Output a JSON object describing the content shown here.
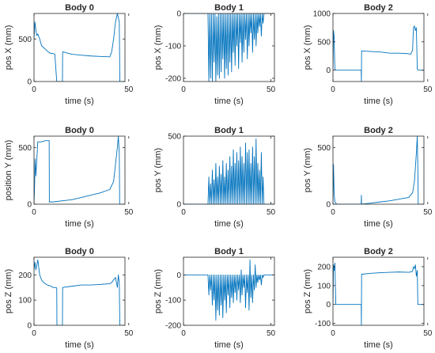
{
  "figure": {
    "line_color": "#0072bd",
    "axis_color": "#262626"
  },
  "chart_data": [
    {
      "type": "line",
      "title": "Body 0",
      "xlabel": "time (s)",
      "ylabel": "pos X (mm)",
      "xlim": [
        0,
        48
      ],
      "ylim": [
        0,
        800
      ],
      "xticks": [
        0,
        50
      ],
      "yticks": [
        0,
        500
      ],
      "series": [
        {
          "x": [
            0,
            0.5,
            1,
            1.5,
            2,
            3,
            4,
            5,
            6,
            7,
            8,
            9,
            10,
            11,
            12,
            12.1,
            15,
            15.1,
            20,
            25,
            30,
            35,
            40,
            41,
            42,
            43,
            44,
            45,
            45.3,
            48
          ],
          "y": [
            500,
            700,
            600,
            540,
            560,
            500,
            420,
            400,
            380,
            360,
            340,
            330,
            330,
            320,
            0,
            0,
            0,
            350,
            320,
            310,
            300,
            295,
            290,
            350,
            500,
            700,
            800,
            700,
            0,
            0
          ]
        }
      ]
    },
    {
      "type": "line",
      "title": "Body 1",
      "xlabel": "time (s)",
      "ylabel": "pos X (mm)",
      "xlim": [
        0,
        52
      ],
      "ylim": [
        -210,
        0
      ],
      "xticks": [
        0,
        50
      ],
      "yticks": [
        -200,
        -100,
        0
      ],
      "series": [
        {
          "x": [
            0,
            14,
            14.5,
            15,
            15.5,
            16,
            16.5,
            17,
            17.5,
            18,
            18.5,
            19,
            19.5,
            20,
            20.5,
            21,
            21.5,
            22,
            22.5,
            23,
            23.5,
            24,
            24.5,
            25,
            25.5,
            26,
            26.5,
            27,
            27.5,
            28,
            28.5,
            29,
            29.5,
            30,
            30.5,
            31,
            31.5,
            32,
            32.5,
            33,
            33.5,
            34,
            34.5,
            35,
            35.5,
            36,
            36.5,
            37,
            37.5,
            38,
            38.5,
            39,
            39.5,
            40,
            40.5,
            41,
            41.5,
            42,
            42.5,
            43,
            43.5,
            44,
            44.5,
            45,
            45.5,
            46,
            52
          ],
          "y": [
            0,
            0,
            -210,
            0,
            -200,
            0,
            -210,
            0,
            -150,
            0,
            -210,
            -10,
            -190,
            0,
            -200,
            0,
            -180,
            0,
            -140,
            0,
            -200,
            0,
            -170,
            0,
            -190,
            0,
            -150,
            0,
            -180,
            0,
            -120,
            0,
            -160,
            0,
            -100,
            0,
            -170,
            0,
            -90,
            0,
            -150,
            0,
            -120,
            0,
            -80,
            0,
            -140,
            0,
            -100,
            0,
            -60,
            0,
            -120,
            0,
            -80,
            0,
            -100,
            0,
            -60,
            0,
            -40,
            0,
            -70,
            0,
            -30,
            0,
            0
          ]
        }
      ]
    },
    {
      "type": "line",
      "title": "Body 2",
      "xlabel": "time (s)",
      "ylabel": "pos X (mm)",
      "xlim": [
        0,
        48
      ],
      "ylim": [
        -200,
        1000
      ],
      "xticks": [
        0,
        50
      ],
      "yticks": [
        0,
        500,
        1000
      ],
      "series": [
        {
          "x": [
            0,
            0.3,
            0.6,
            1,
            1.5,
            2,
            5,
            10,
            14.9,
            15,
            15.1,
            20,
            25,
            30,
            35,
            40,
            41,
            42,
            42.5,
            43,
            43.5,
            44,
            44.5,
            45,
            45.3,
            48
          ],
          "y": [
            0,
            700,
            600,
            20,
            0,
            0,
            0,
            0,
            0,
            -200,
            340,
            330,
            320,
            300,
            300,
            290,
            280,
            350,
            750,
            780,
            700,
            750,
            20,
            0,
            0,
            0
          ]
        }
      ]
    },
    {
      "type": "line",
      "title": "Body 0",
      "xlabel": "time (s)",
      "ylabel": "position Y (mm)",
      "xlim": [
        0,
        48
      ],
      "ylim": [
        0,
        600
      ],
      "xticks": [
        0,
        50
      ],
      "yticks": [
        0,
        500
      ],
      "series": [
        {
          "x": [
            0,
            0.3,
            0.6,
            1,
            1.5,
            2,
            4,
            6,
            8,
            8.1,
            10,
            15,
            20,
            25,
            30,
            35,
            40,
            42,
            43,
            44,
            44.5,
            45,
            45.2,
            48
          ],
          "y": [
            0,
            150,
            400,
            250,
            400,
            550,
            550,
            560,
            560,
            20,
            20,
            30,
            40,
            60,
            80,
            100,
            130,
            200,
            350,
            500,
            600,
            450,
            0,
            0
          ]
        }
      ]
    },
    {
      "type": "line",
      "title": "Body 1",
      "xlabel": "time (s)",
      "ylabel": "pos Y (mm)",
      "xlim": [
        0,
        52
      ],
      "ylim": [
        0,
        500
      ],
      "xticks": [
        0,
        50
      ],
      "yticks": [
        0,
        500
      ],
      "series": [
        {
          "x": [
            0,
            14,
            14.5,
            15,
            15.5,
            16,
            16.5,
            17,
            17.5,
            18,
            18.5,
            19,
            19.5,
            20,
            20.5,
            21,
            21.5,
            22,
            22.5,
            23,
            23.5,
            24,
            24.5,
            25,
            25.5,
            26,
            26.5,
            27,
            27.5,
            28,
            28.5,
            29,
            29.5,
            30,
            30.5,
            31,
            31.5,
            32,
            32.5,
            33,
            33.5,
            34,
            34.5,
            35,
            35.5,
            36,
            36.5,
            37,
            37.5,
            38,
            38.5,
            39,
            39.5,
            40,
            40.5,
            41,
            41.5,
            42,
            42.5,
            43,
            43.5,
            44,
            44.5,
            45,
            45.5,
            46,
            52
          ],
          "y": [
            0,
            0,
            200,
            0,
            150,
            0,
            250,
            0,
            180,
            0,
            300,
            0,
            200,
            0,
            280,
            0,
            220,
            0,
            320,
            0,
            200,
            0,
            300,
            0,
            250,
            0,
            350,
            0,
            280,
            0,
            400,
            0,
            300,
            0,
            380,
            0,
            320,
            0,
            420,
            0,
            350,
            0,
            300,
            0,
            450,
            0,
            380,
            0,
            400,
            0,
            300,
            0,
            420,
            0,
            350,
            0,
            480,
            0,
            300,
            0,
            250,
            0,
            380,
            0,
            200,
            0,
            0
          ]
        }
      ]
    },
    {
      "type": "line",
      "title": "Body 2",
      "xlabel": "time (s)",
      "ylabel": "pos Y (mm)",
      "xlim": [
        0,
        48
      ],
      "ylim": [
        0,
        600
      ],
      "xticks": [
        0,
        50
      ],
      "yticks": [
        0,
        500
      ],
      "series": [
        {
          "x": [
            0,
            0.3,
            0.6,
            1,
            2,
            5,
            10,
            14.9,
            15,
            15.1,
            20,
            25,
            30,
            35,
            40,
            42,
            43,
            44,
            44.5,
            44.8,
            45,
            48
          ],
          "y": [
            0,
            350,
            100,
            20,
            0,
            0,
            0,
            0,
            80,
            0,
            10,
            20,
            30,
            45,
            60,
            100,
            200,
            450,
            600,
            300,
            0,
            0
          ]
        }
      ]
    },
    {
      "type": "line",
      "title": "Body 0",
      "xlabel": "time (s)",
      "ylabel": "pos Z (mm)",
      "xlim": [
        0,
        48
      ],
      "ylim": [
        0,
        270
      ],
      "xticks": [
        0,
        50
      ],
      "yticks": [
        0,
        100,
        200
      ],
      "series": [
        {
          "x": [
            0,
            0.5,
            1,
            1.5,
            2,
            3,
            4,
            5,
            6,
            7,
            8,
            9,
            10,
            11,
            12,
            12.1,
            15,
            15.1,
            20,
            25,
            30,
            35,
            40,
            41,
            42,
            43,
            43.5,
            44,
            44.5,
            45,
            45.3,
            48
          ],
          "y": [
            220,
            250,
            220,
            240,
            260,
            200,
            180,
            170,
            165,
            160,
            158,
            155,
            150,
            150,
            148,
            0,
            0,
            150,
            155,
            160,
            160,
            162,
            165,
            170,
            180,
            190,
            170,
            150,
            200,
            170,
            0,
            0
          ]
        }
      ]
    },
    {
      "type": "line",
      "title": "Body 1",
      "xlabel": "time (s)",
      "ylabel": "pos Z (mm)",
      "xlim": [
        0,
        52
      ],
      "ylim": [
        -200,
        70
      ],
      "xticks": [
        0,
        50
      ],
      "yticks": [
        -200,
        -100,
        0
      ],
      "series": [
        {
          "x": [
            0,
            14,
            14.5,
            15,
            15.5,
            16,
            16.5,
            17,
            17.5,
            18,
            18.5,
            19,
            19.5,
            20,
            20.5,
            21,
            21.5,
            22,
            22.5,
            23,
            23.5,
            24,
            24.5,
            25,
            25.5,
            26,
            26.5,
            27,
            27.5,
            28,
            28.5,
            29,
            29.5,
            30,
            30.5,
            31,
            31.5,
            32,
            32.5,
            33,
            33.5,
            34,
            34.5,
            35,
            35.5,
            36,
            36.5,
            37,
            37.5,
            38,
            38.5,
            39,
            39.5,
            40,
            40.5,
            41,
            41.5,
            42,
            42.5,
            43,
            43.5,
            44,
            44.5,
            45,
            45.5,
            46,
            52
          ],
          "y": [
            0,
            0,
            -80,
            0,
            -60,
            0,
            -120,
            0,
            -100,
            0,
            -180,
            0,
            -140,
            0,
            -160,
            0,
            -120,
            0,
            -170,
            0,
            -100,
            0,
            -150,
            0,
            -80,
            0,
            -130,
            0,
            -90,
            0,
            -110,
            0,
            -70,
            0,
            -100,
            0,
            -60,
            0,
            -110,
            20,
            -80,
            0,
            -50,
            0,
            -130,
            0,
            -70,
            0,
            -140,
            60,
            -90,
            0,
            -110,
            0,
            -60,
            40,
            -50,
            0,
            -30,
            0,
            -20,
            0,
            -40,
            0,
            -10,
            0,
            0
          ]
        }
      ]
    },
    {
      "type": "line",
      "title": "Body 2",
      "xlabel": "time (s)",
      "ylabel": "pos Z (mm)",
      "xlim": [
        0,
        48
      ],
      "ylim": [
        -110,
        250
      ],
      "xticks": [
        0,
        50
      ],
      "yticks": [
        -100,
        0,
        100,
        200
      ],
      "series": [
        {
          "x": [
            0,
            0.3,
            0.6,
            1,
            1.5,
            2,
            5,
            10,
            14.9,
            15,
            15.1,
            20,
            25,
            30,
            35,
            40,
            42,
            42.5,
            43,
            43.5,
            44,
            44.5,
            44.8,
            48
          ],
          "y": [
            0,
            210,
            180,
            220,
            0,
            0,
            0,
            0,
            0,
            -110,
            160,
            165,
            168,
            170,
            172,
            170,
            175,
            200,
            190,
            210,
            150,
            180,
            0,
            0
          ]
        }
      ]
    }
  ]
}
